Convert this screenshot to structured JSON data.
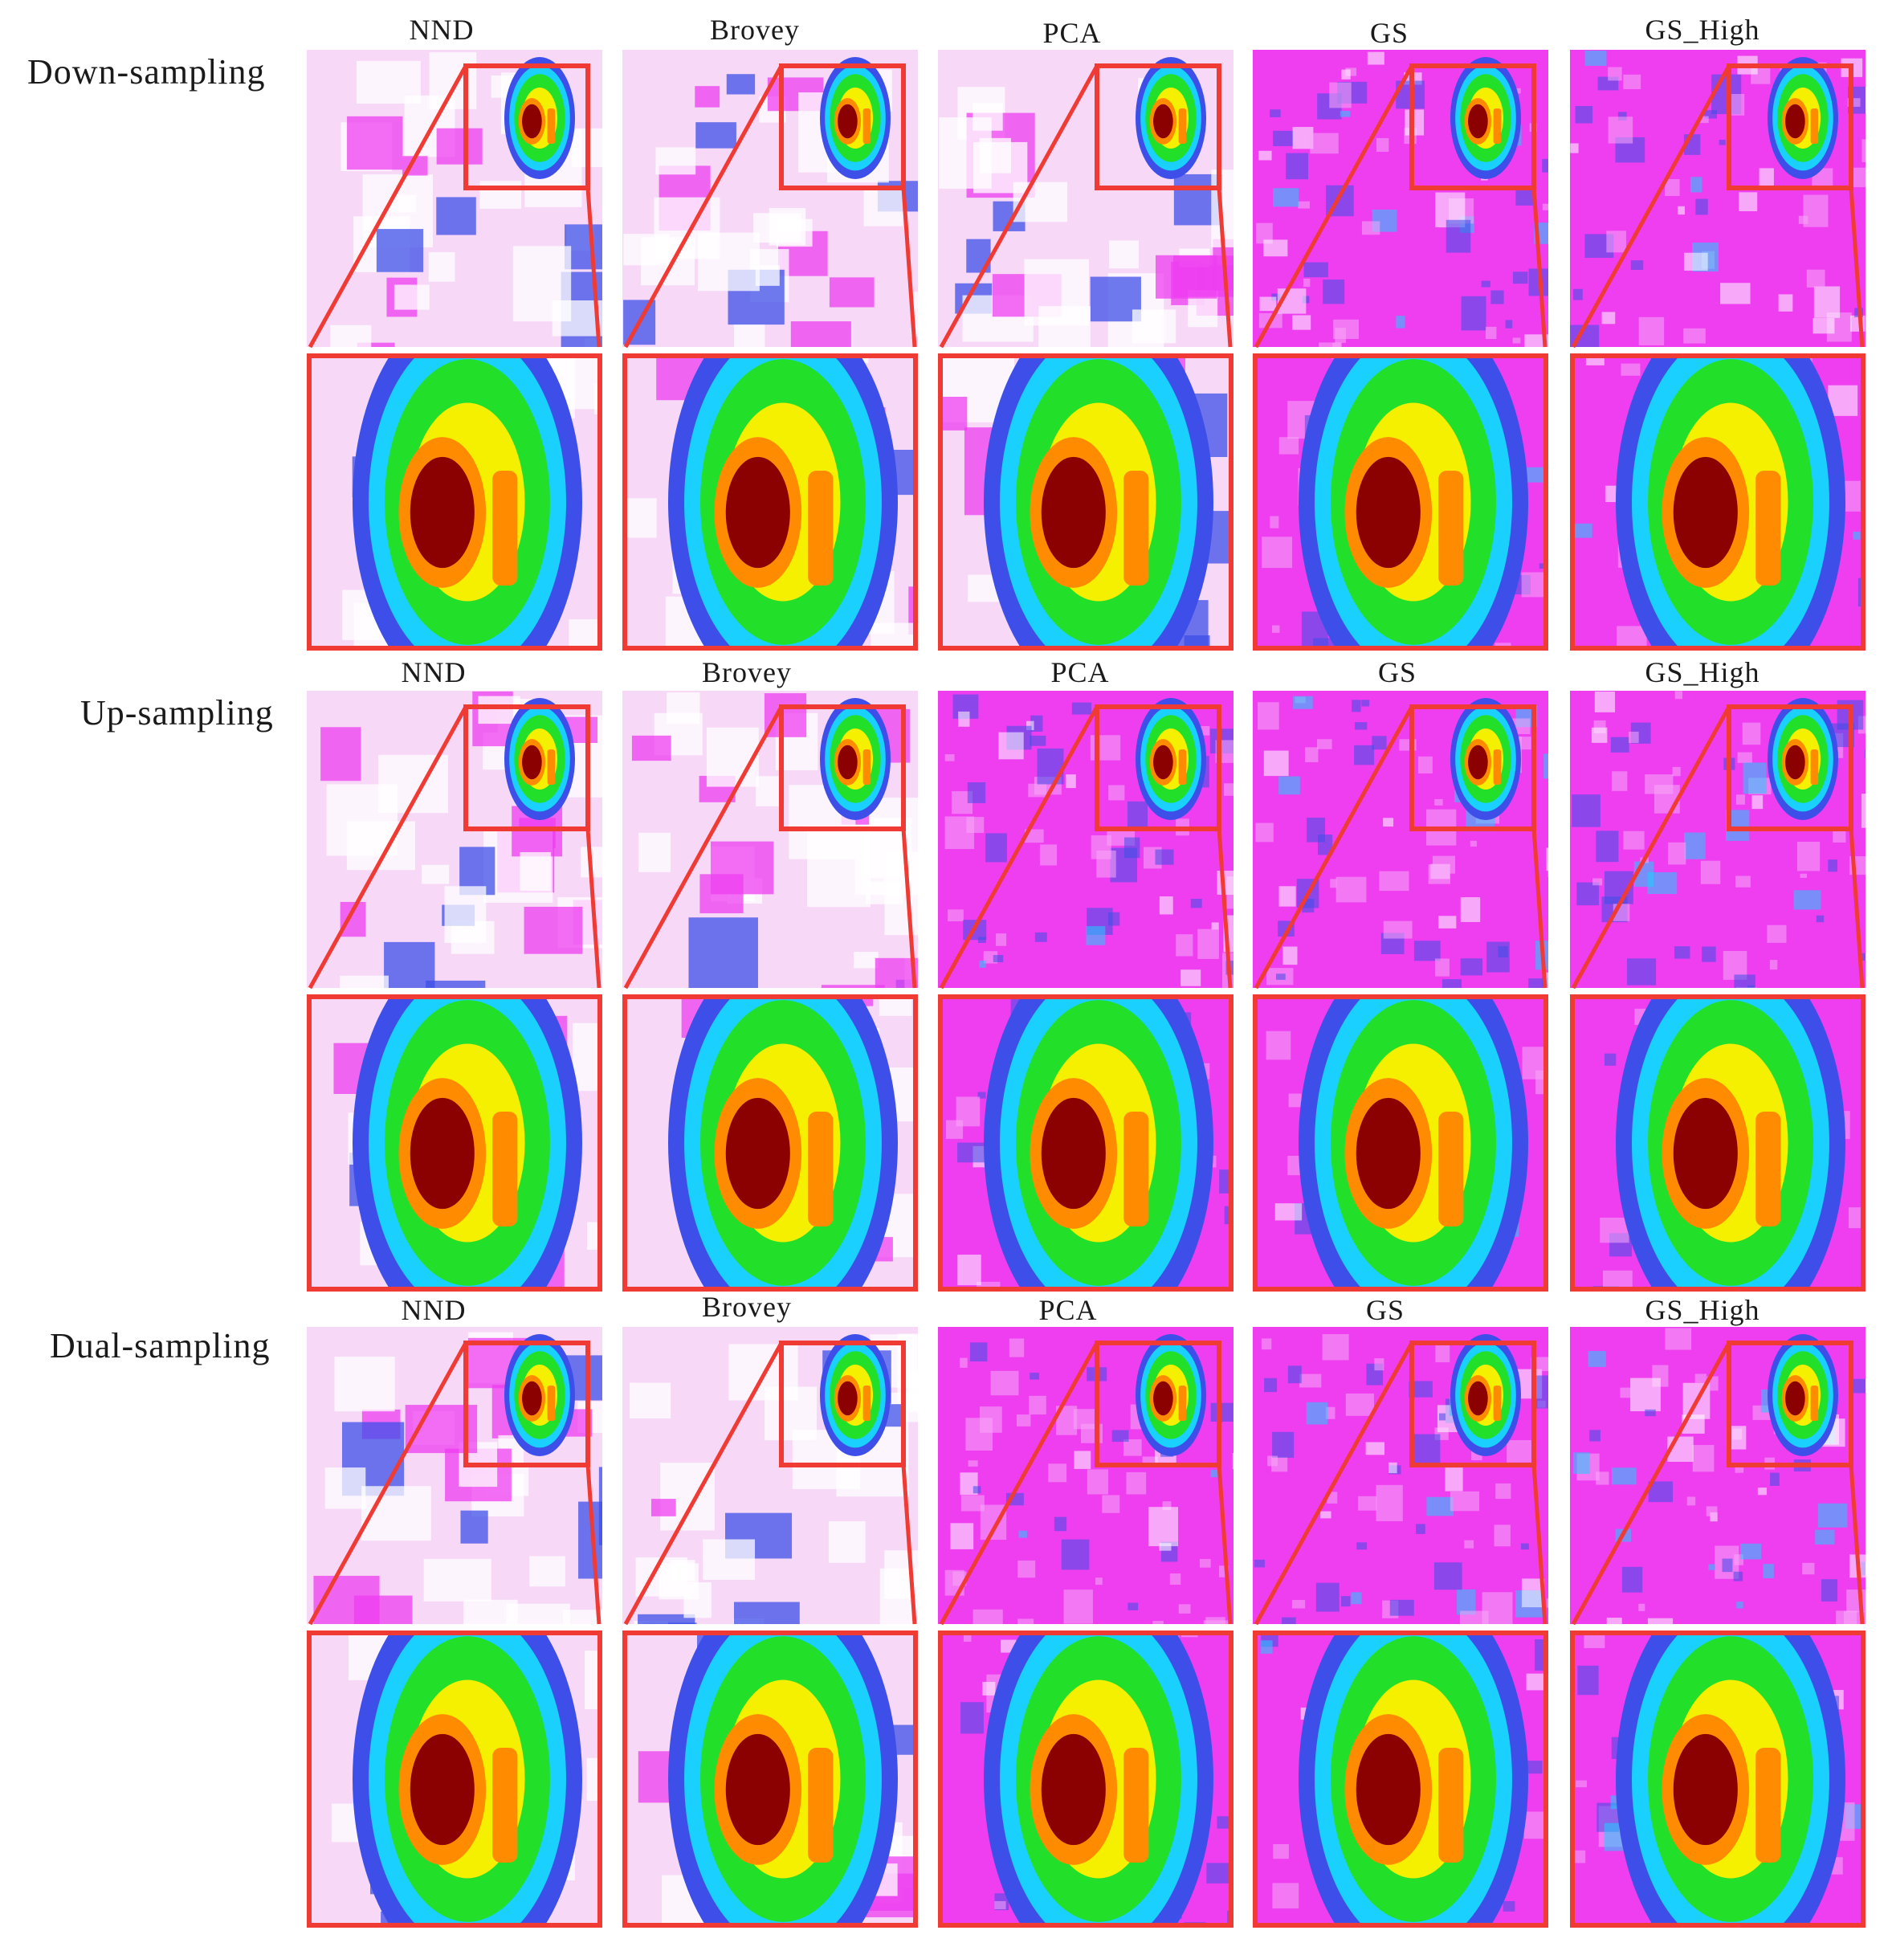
{
  "rows": [
    {
      "label": "Down-sampling",
      "columns": [
        "NND",
        "Brovey",
        "PCA",
        "GS",
        "GS_High"
      ]
    },
    {
      "label": "Up-sampling",
      "columns": [
        "NND",
        "Brovey",
        "PCA",
        "GS",
        "GS_High"
      ]
    },
    {
      "label": "Dual-sampling",
      "columns": [
        "NND",
        "Brovey",
        "PCA",
        "GS",
        "GS_High"
      ]
    }
  ],
  "colors": {
    "highlight_box": "#ef3b33",
    "hot_core": "#8b0000",
    "orange": "#ff8c00",
    "yellow": "#f5f000",
    "green": "#22e02a",
    "cyan": "#19d0ff",
    "blue": "#3d4fe8",
    "magenta": "#ee3ef0",
    "light_pink": "#f7d8f7"
  },
  "colormap": "rainbow heat map (magenta-blue-cyan-green-yellow-red)"
}
